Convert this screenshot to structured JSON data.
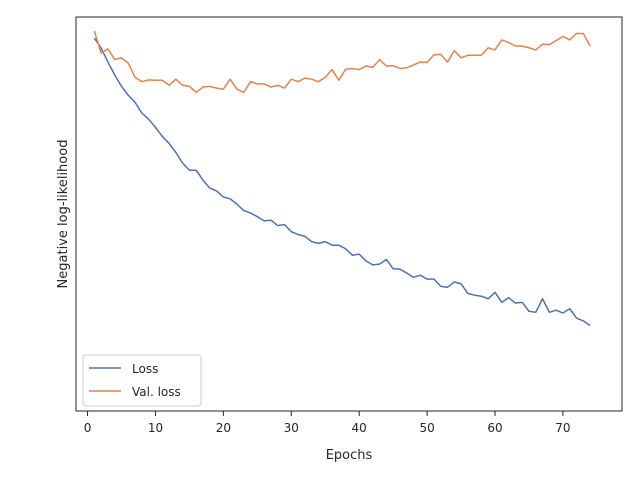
{
  "chart_data": {
    "type": "line",
    "xlabel": "Epochs",
    "ylabel": "Negative log-likelihood",
    "xlim": [
      -1.7,
      78.7
    ],
    "ylim": [
      0.0,
      1.0
    ],
    "xticks": [
      0,
      10,
      20,
      30,
      40,
      50,
      60,
      70
    ],
    "y_tick_labels_shown": false,
    "grid": false,
    "legend_position": "lower-left",
    "x": [
      1,
      2,
      3,
      4,
      5,
      6,
      7,
      8,
      9,
      10,
      11,
      12,
      13,
      14,
      15,
      16,
      17,
      18,
      19,
      20,
      21,
      22,
      23,
      24,
      25,
      26,
      27,
      28,
      29,
      30,
      31,
      32,
      33,
      34,
      35,
      36,
      37,
      38,
      39,
      40,
      41,
      42,
      43,
      44,
      45,
      46,
      47,
      48,
      49,
      50,
      51,
      52,
      53,
      54,
      55,
      56,
      57,
      58,
      59,
      60,
      61,
      62,
      63,
      64,
      65,
      66,
      67,
      68,
      69,
      70,
      71,
      72,
      73,
      74
    ],
    "series": [
      {
        "name": "Loss",
        "color": "#4c72b0",
        "values": [
          0.98,
          0.952,
          0.913,
          0.877,
          0.845,
          0.82,
          0.8,
          0.77,
          0.753,
          0.73,
          0.705,
          0.685,
          0.66,
          0.63,
          0.61,
          0.61,
          0.582,
          0.56,
          0.552,
          0.535,
          0.53,
          0.515,
          0.497,
          0.49,
          0.48,
          0.468,
          0.47,
          0.455,
          0.458,
          0.438,
          0.43,
          0.425,
          0.41,
          0.405,
          0.41,
          0.4,
          0.4,
          0.39,
          0.372,
          0.375,
          0.356,
          0.345,
          0.347,
          0.36,
          0.334,
          0.333,
          0.322,
          0.31,
          0.316,
          0.305,
          0.305,
          0.285,
          0.282,
          0.297,
          0.292,
          0.265,
          0.26,
          0.257,
          0.25,
          0.268,
          0.24,
          0.253,
          0.238,
          0.24,
          0.215,
          0.212,
          0.25,
          0.212,
          0.218,
          0.21,
          0.222,
          0.196,
          0.188,
          0.175
        ]
      },
      {
        "name": "Val. loss",
        "color": "#dd8452",
        "values": [
          1.0,
          0.938,
          0.95,
          0.92,
          0.925,
          0.91,
          0.87,
          0.858,
          0.863,
          0.862,
          0.862,
          0.848,
          0.865,
          0.848,
          0.845,
          0.828,
          0.843,
          0.845,
          0.84,
          0.837,
          0.865,
          0.837,
          0.828,
          0.858,
          0.852,
          0.852,
          0.843,
          0.848,
          0.84,
          0.865,
          0.858,
          0.868,
          0.865,
          0.858,
          0.87,
          0.892,
          0.862,
          0.893,
          0.895,
          0.892,
          0.902,
          0.898,
          0.92,
          0.902,
          0.903,
          0.895,
          0.897,
          0.905,
          0.913,
          0.912,
          0.933,
          0.935,
          0.913,
          0.945,
          0.925,
          0.932,
          0.932,
          0.932,
          0.953,
          0.947,
          0.975,
          0.968,
          0.958,
          0.958,
          0.953,
          0.947,
          0.963,
          0.962,
          0.973,
          0.985,
          0.975,
          0.993,
          0.993,
          0.958
        ]
      }
    ]
  }
}
